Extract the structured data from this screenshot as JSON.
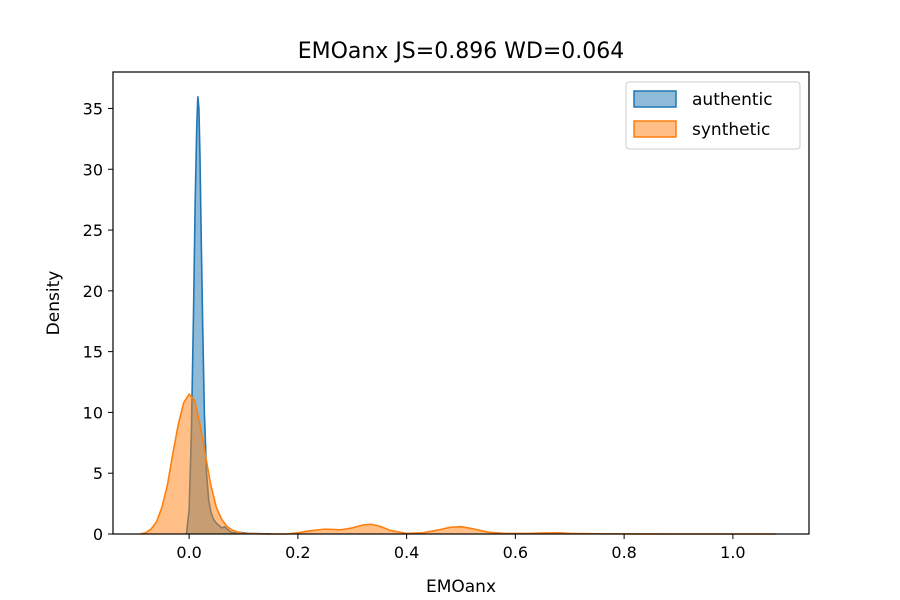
{
  "chart_data": {
    "type": "area",
    "title": "EMOanx  JS=0.896  WD=0.064",
    "xlabel": "EMOanx",
    "ylabel": "Density",
    "xlim": [
      -0.14,
      1.14
    ],
    "ylim": [
      0,
      38
    ],
    "xticks": [
      0.0,
      0.2,
      0.4,
      0.6,
      0.8,
      1.0
    ],
    "xtick_labels": [
      "0.0",
      "0.2",
      "0.4",
      "0.6",
      "0.8",
      "1.0"
    ],
    "yticks": [
      0,
      5,
      10,
      15,
      20,
      25,
      30,
      35
    ],
    "ytick_labels": [
      "0",
      "5",
      "10",
      "15",
      "20",
      "25",
      "30",
      "35"
    ],
    "grid": false,
    "legend_position": "top-right",
    "series": [
      {
        "name": "authentic",
        "color": "#1f77b4",
        "fill_opacity": 0.5,
        "x": [
          -0.005,
          0.0,
          0.004,
          0.008,
          0.011,
          0.014,
          0.016,
          0.018,
          0.02,
          0.022,
          0.025,
          0.028,
          0.032,
          0.036,
          0.04,
          0.045,
          0.05,
          0.055,
          0.06,
          0.065,
          0.07,
          0.075,
          0.08,
          0.09,
          0.1,
          0.11,
          0.12,
          0.13,
          0.14,
          0.15
        ],
        "y": [
          0.0,
          2.0,
          8.0,
          18.0,
          27.0,
          33.5,
          36.0,
          35.0,
          31.0,
          25.0,
          17.0,
          10.0,
          5.0,
          2.8,
          1.8,
          1.2,
          0.9,
          0.7,
          0.5,
          0.6,
          0.4,
          0.2,
          0.1,
          0.15,
          0.1,
          0.05,
          0.04,
          0.03,
          0.02,
          0.0
        ]
      },
      {
        "name": "synthetic",
        "color": "#ff7f0e",
        "fill_opacity": 0.5,
        "x": [
          -0.09,
          -0.08,
          -0.07,
          -0.06,
          -0.05,
          -0.04,
          -0.03,
          -0.02,
          -0.01,
          0.0,
          0.01,
          0.02,
          0.03,
          0.04,
          0.05,
          0.06,
          0.07,
          0.08,
          0.09,
          0.1,
          0.12,
          0.15,
          0.18,
          0.2,
          0.22,
          0.25,
          0.28,
          0.3,
          0.32,
          0.335,
          0.35,
          0.37,
          0.4,
          0.43,
          0.46,
          0.48,
          0.5,
          0.52,
          0.55,
          0.58,
          0.62,
          0.65,
          0.68,
          0.7,
          0.75,
          0.8,
          0.9,
          1.0,
          1.08
        ],
        "y": [
          0.0,
          0.1,
          0.4,
          1.0,
          2.2,
          4.0,
          6.6,
          9.0,
          10.8,
          11.5,
          11.0,
          9.0,
          6.5,
          4.0,
          2.2,
          1.2,
          0.6,
          0.3,
          0.15,
          0.05,
          0.02,
          0.0,
          0.0,
          0.1,
          0.25,
          0.4,
          0.35,
          0.5,
          0.75,
          0.8,
          0.65,
          0.3,
          0.05,
          0.1,
          0.35,
          0.55,
          0.6,
          0.45,
          0.15,
          0.05,
          0.05,
          0.08,
          0.1,
          0.05,
          0.02,
          0.01,
          0.0,
          0.0,
          0.0
        ]
      }
    ]
  }
}
